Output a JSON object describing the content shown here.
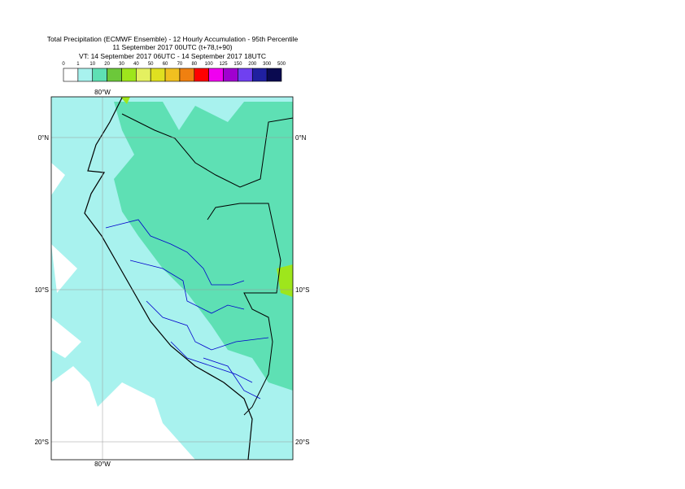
{
  "header": {
    "lines": [
      "Total Precipitation (ECMWF Ensemble) - 12 Hourly Accumulation - 95th Percentile",
      "11 September 2017 00UTC (t+78,t+90)",
      "VT: 14 September 2017 06UTC - 14 September 2017 18UTC"
    ]
  },
  "legend": {
    "labels": [
      "0",
      "1",
      "10",
      "20",
      "30",
      "40",
      "50",
      "60",
      "70",
      "80",
      "100",
      "125",
      "150",
      "200",
      "300",
      "500"
    ],
    "colors": [
      "#ffffff",
      "#a8f2ee",
      "#5ee0b4",
      "#6cc83a",
      "#9ee61c",
      "#e4f060",
      "#e0e020",
      "#f0c020",
      "#f08010",
      "#ff0000",
      "#f000f0",
      "#a000d0",
      "#7040f0",
      "#2020a0",
      "#0a0a50"
    ]
  },
  "map": {
    "labels": {
      "top": "80°W",
      "bottom": "80°W",
      "left": [
        "0°N",
        "10°S",
        "20°S"
      ],
      "right": [
        "0°N",
        "10°S",
        "20°S"
      ]
    }
  }
}
